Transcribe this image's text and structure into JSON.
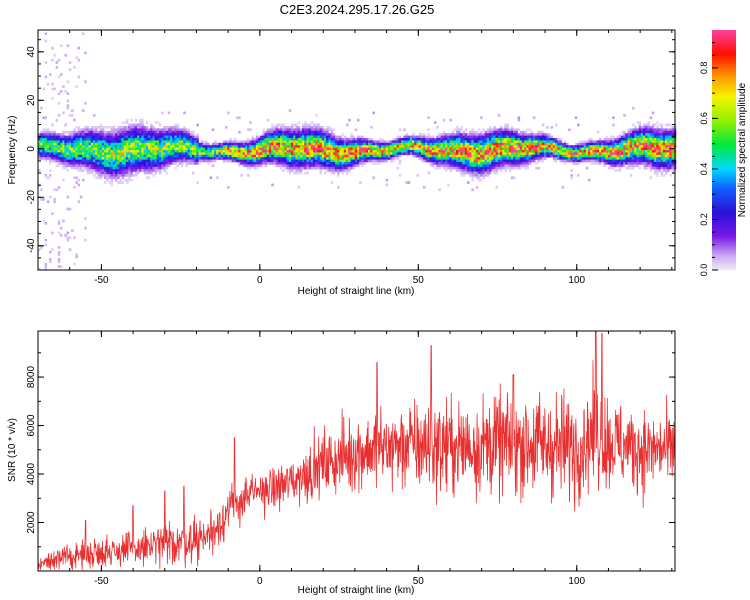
{
  "title": "C2E3.2024.295.17.26.G25",
  "chart_data": [
    {
      "type": "heatmap",
      "xlabel": "Height of straight line (km)",
      "ylabel": "Frequency (Hz)",
      "xlim": [
        -70,
        131
      ],
      "ylim": [
        -50,
        49
      ],
      "xticks": [
        -50,
        0,
        50,
        100
      ],
      "yticks": [
        -40,
        -20,
        0,
        20,
        40
      ],
      "colorbar": {
        "label": "Normalized spectral amplitude",
        "range": [
          0,
          0.95
        ],
        "ticks": [
          "0.0",
          "0.2",
          "0.4",
          "0.6",
          "0.8"
        ],
        "colormap": "rainbow (light violet to red/magenta)"
      },
      "description_of_values": "Energy concentrated near 0 Hz, band width about ±8 Hz; sparse low-amplitude scatter to ±50 Hz below -55 km; peak amplitudes along center from -10 km to 130 km"
    },
    {
      "type": "line",
      "xlabel": "Height of straight line (km)",
      "ylabel": "SNR (10 * v/v)",
      "xlim": [
        -70,
        131
      ],
      "ylim": [
        0,
        9900
      ],
      "xticks": [
        -50,
        0,
        50,
        100
      ],
      "yticks": [
        2000,
        4000,
        6000,
        8000
      ],
      "series": [
        {
          "color": "#e83030",
          "trend": {
            "x": [
              -70,
              -60,
              -50,
              -40,
              -30,
              -20,
              -15,
              -10,
              -5,
              0,
              5,
              10,
              20,
              30,
              40,
              50,
              60,
              70,
              80,
              90,
              100,
              105,
              110,
              120,
              131
            ],
            "y": [
              300,
              600,
              800,
              900,
              1100,
              1300,
              1600,
              2500,
              3000,
              3300,
              3400,
              3700,
              4400,
              4900,
              5100,
              5200,
              5100,
              5200,
              5300,
              5200,
              5100,
              5700,
              5300,
              5000,
              5000
            ]
          },
          "noise_amplitude": {
            "x": [
              -70,
              -40,
              -15,
              0,
              30,
              60,
              100,
              131
            ],
            "y": [
              300,
              700,
              900,
              700,
              1400,
              1800,
              2000,
              1300
            ]
          },
          "peaks": {
            "x": [
              -55,
              -40,
              -30,
              -24,
              -8,
              37,
              54,
              80,
              106,
              108
            ],
            "y": [
              2100,
              2700,
              3300,
              3500,
              5500,
              8600,
              9300,
              8100,
              9900,
              9800
            ]
          }
        }
      ]
    }
  ]
}
